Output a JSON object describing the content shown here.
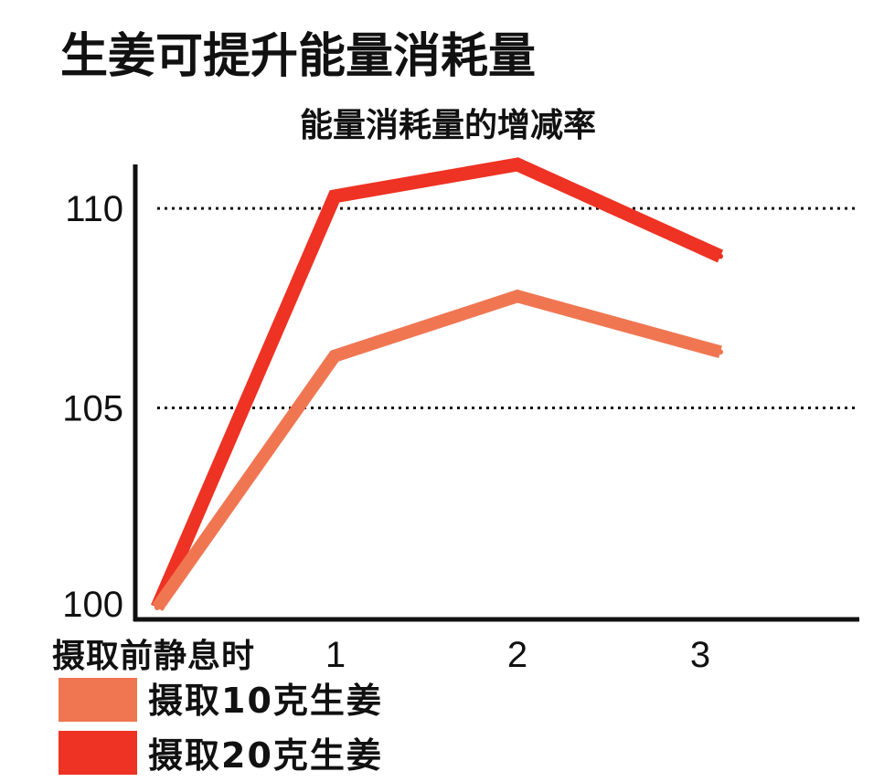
{
  "chart_data": {
    "type": "line",
    "title": "生姜可提升能量消耗量",
    "subtitle": "能量消耗量的增减率",
    "categories": [
      "摄取前静息时",
      "1",
      "2",
      "3"
    ],
    "ylim": [
      99.7,
      111.1
    ],
    "yticks": [
      110,
      105,
      100
    ],
    "gridlines": [
      110,
      105
    ],
    "grid": true,
    "legend_position": "bottom-left",
    "series": [
      {
        "name": "摄取10克生姜",
        "color": "#F07652",
        "values": [
          100,
          106.3,
          107.8,
          106.4
        ]
      },
      {
        "name": "摄取20克生姜",
        "color": "#EE3223",
        "values": [
          100,
          110.3,
          111.1,
          108.8
        ]
      }
    ]
  }
}
